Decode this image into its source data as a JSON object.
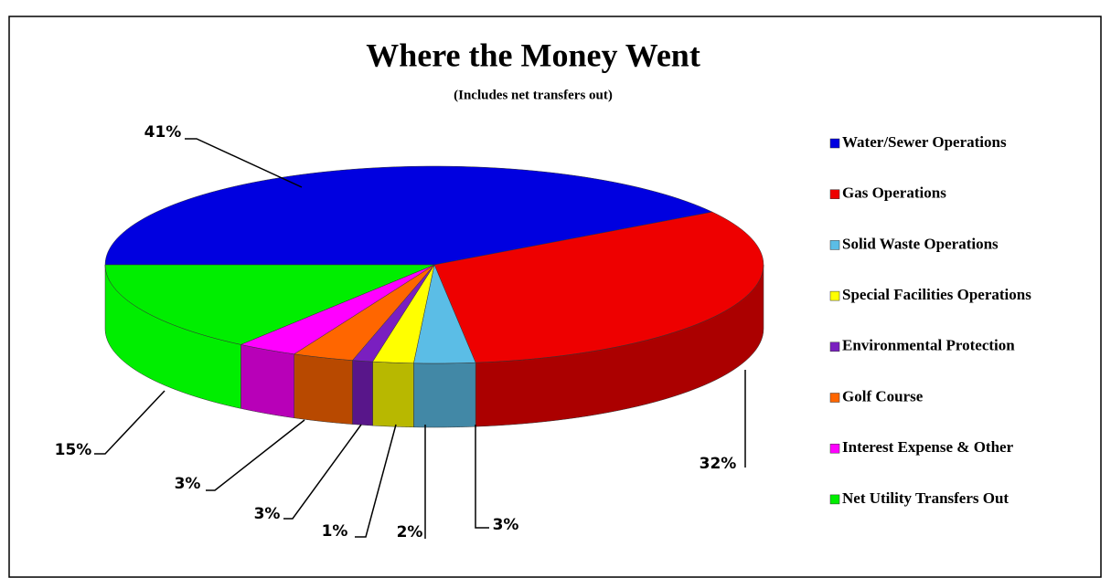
{
  "chart_data": {
    "type": "pie3d",
    "title": "Where the Money Went",
    "subtitle": "(Includes net transfers out)",
    "categories": [
      "Water/Sewer Operations",
      "Gas Operations",
      "Solid Waste Operations",
      "Special Facilities Operations",
      "Environmental Protection",
      "Golf Course",
      "Interest Expense & Other",
      "Net Utility Transfers Out"
    ],
    "values": [
      41,
      32,
      3,
      2,
      1,
      3,
      3,
      15
    ],
    "value_labels": [
      "41%",
      "32%",
      "3%",
      "2%",
      "1%",
      "3%",
      "3%",
      "15%"
    ],
    "colors": [
      "#0000e0",
      "#ee0000",
      "#5bbde6",
      "#ffff00",
      "#7a1fc0",
      "#ff6600",
      "#ff00ff",
      "#00ee00"
    ],
    "legend": "right"
  }
}
